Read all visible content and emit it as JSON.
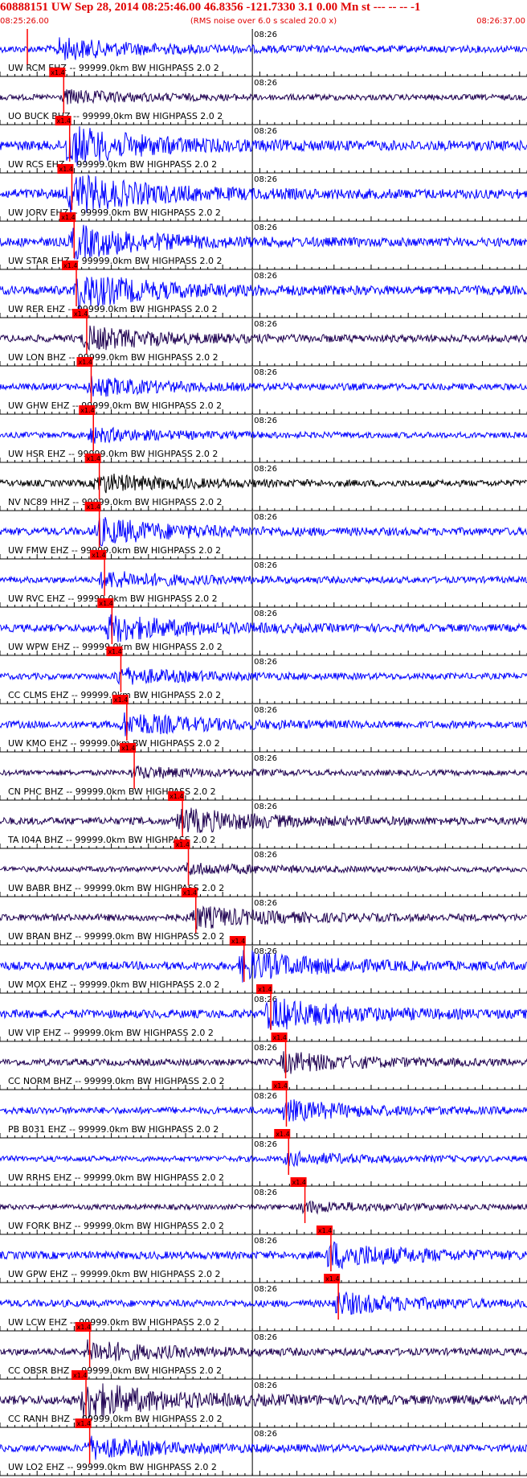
{
  "header": {
    "title": "60888151 UW Sep 28, 2014 08:25:46.00   46.8356 -121.7330  3.1 0.00 Mn st --- -- --  -1",
    "subtitle": "(RMS noise over 6.0 s scaled 20.0 x)",
    "start_time": "08:25:26.00",
    "end_time": "08:26:37.00"
  },
  "colors": {
    "header": "#e00000",
    "trace_blue": "#0000ff",
    "trace_dark": "#1e0050",
    "pick": "#ff0000",
    "grid": "#000000"
  },
  "chart_data": {
    "type": "line",
    "title": "60888151 UW Sep 28, 2014 08:25:46.00   46.8356 -121.7330  3.1 0.00 Mn st --- -- --  -1",
    "subtitle": "(RMS noise over 6.0 s scaled 20.0 x)",
    "x_range_s": [
      0,
      71
    ],
    "x_start": "08:25:26.00",
    "x_end": "08:26:37.00",
    "minute_mark_label": "08:26",
    "minute_mark_s": 34,
    "pick_label": "x1.4",
    "traces": [
      {
        "label": "UW RCM EHZ -- 99999.0km BW  HIGHPASS  2.0  2",
        "color": "blue",
        "pick_s": 2.6,
        "onset_s": 7.4,
        "amp": 0.42
      },
      {
        "label": "UO BUCK BHZ -- 99999.0km BW  HIGHPASS  2.0  2",
        "color": "dark",
        "pick_s": 7.5,
        "onset_s": 8.2,
        "amp": 0.18
      },
      {
        "label": "UW RCS EHZ -- 99999.0km BW  HIGHPASS  2.0  2",
        "color": "blue",
        "pick_s": 8.3,
        "onset_s": 8.5,
        "amp": 1.0
      },
      {
        "label": "UW JORV EHZ -- 99999.0km BW  HIGHPASS  2.0  2",
        "color": "blue",
        "pick_s": 8.6,
        "onset_s": 8.8,
        "amp": 1.0
      },
      {
        "label": "UW STAR EHZ -- 99999.0km BW  HIGHPASS  2.0  2",
        "color": "blue",
        "pick_s": 8.9,
        "onset_s": 9.2,
        "amp": 0.8
      },
      {
        "label": "UW RER EHZ -- 99999.0km BW  HIGHPASS  2.0  2",
        "color": "blue",
        "pick_s": 9.2,
        "onset_s": 9.8,
        "amp": 0.85
      },
      {
        "label": "UW LON BHZ -- 99999.0km BW  HIGHPASS  2.0  2",
        "color": "dark",
        "pick_s": 10.6,
        "onset_s": 10.9,
        "amp": 0.5
      },
      {
        "label": "UW GHW EHZ -- 99999.0km BW  HIGHPASS  2.0  2",
        "color": "blue",
        "pick_s": 11.2,
        "onset_s": 11.5,
        "amp": 0.35
      },
      {
        "label": "UW HSR EHZ -- 99999.0km BW  HIGHPASS  2.0  2",
        "color": "blue",
        "pick_s": 11.5,
        "onset_s": 11.6,
        "amp": 0.2
      },
      {
        "label": "NV NC89 HHZ -- 99999.0km BW  HIGHPASS  2.0  2",
        "color": "black",
        "pick_s": 12.3,
        "onset_s": 12.4,
        "amp": 0.35
      },
      {
        "label": "UW FMW EHZ -- 99999.0km BW  HIGHPASS  2.0  2",
        "color": "blue",
        "pick_s": 12.3,
        "onset_s": 12.5,
        "amp": 0.6
      },
      {
        "label": "UW RVC EHZ -- 99999.0km BW  HIGHPASS  2.0  2",
        "color": "blue",
        "pick_s": 13.0,
        "onset_s": 13.2,
        "amp": 0.3
      },
      {
        "label": "UW WPW EHZ -- 99999.0km BW  HIGHPASS  2.0  2",
        "color": "blue",
        "pick_s": 14.0,
        "onset_s": 14.1,
        "amp": 0.6
      },
      {
        "label": "CC CLMS EHZ -- 99999.0km BW  HIGHPASS  2.0  2",
        "color": "blue",
        "pick_s": 15.2,
        "onset_s": 15.3,
        "amp": 0.28
      },
      {
        "label": "UW KMO EHZ -- 99999.0km BW  HIGHPASS  2.0  2",
        "color": "blue",
        "pick_s": 16.0,
        "onset_s": 16.1,
        "amp": 0.5
      },
      {
        "label": "CN PHC BHZ -- 99999.0km BW  HIGHPASS  2.0  2",
        "color": "dark",
        "pick_s": 17.0,
        "onset_s": 17.3,
        "amp": 0.12
      },
      {
        "label": "TA I04A BHZ -- 99999.0km BW  HIGHPASS  2.0  2",
        "color": "dark",
        "pick_s": 23.5,
        "onset_s": 23.7,
        "amp": 0.55
      },
      {
        "label": "UW BABR BHZ -- 99999.0km BW  HIGHPASS  2.0  2",
        "color": "dark",
        "pick_s": 24.3,
        "onset_s": 24.5,
        "amp": 0.12
      },
      {
        "label": "UW BRAN BHZ -- 99999.0km BW  HIGHPASS  2.0  2",
        "color": "dark",
        "pick_s": 25.3,
        "onset_s": 25.5,
        "amp": 0.45
      },
      {
        "label": "UW MOX EHZ -- 99999.0km BW  HIGHPASS  2.0  2",
        "color": "blue",
        "pick_s": 31.8,
        "onset_s": 32.0,
        "amp": 0.7
      },
      {
        "label": "UW VIP EHZ -- 99999.0km BW  HIGHPASS  2.0  2",
        "color": "blue",
        "pick_s": 35.4,
        "onset_s": 35.6,
        "amp": 0.75
      },
      {
        "label": "CC NORM BHZ -- 99999.0km BW  HIGHPASS  2.0  2",
        "color": "dark",
        "pick_s": 37.4,
        "onset_s": 37.6,
        "amp": 0.4
      },
      {
        "label": "PB B031 EHZ -- 99999.0km BW  HIGHPASS  2.0  2",
        "color": "blue",
        "pick_s": 37.5,
        "onset_s": 37.7,
        "amp": 0.4
      },
      {
        "label": "UW RRHS EHZ -- 99999.0km BW  HIGHPASS  2.0  2",
        "color": "blue",
        "pick_s": 37.8,
        "onset_s": 38.0,
        "amp": 0.15
      },
      {
        "label": "UW FORK BHZ -- 99999.0km BW  HIGHPASS  2.0  2",
        "color": "dark",
        "pick_s": 40.0,
        "onset_s": 40.2,
        "amp": 0.1
      },
      {
        "label": "UW GPW EHZ -- 99999.0km BW  HIGHPASS  2.0  2",
        "color": "blue",
        "pick_s": 43.5,
        "onset_s": 43.7,
        "amp": 0.6
      },
      {
        "label": "UW LCW EHZ -- 99999.0km BW  HIGHPASS  2.0  2",
        "color": "blue",
        "pick_s": 44.5,
        "onset_s": 44.7,
        "amp": 0.45
      },
      {
        "label": "CC OBSR BHZ -- 99999.0km BW  HIGHPASS  2.0  2",
        "color": "dark",
        "pick_s": 11.0,
        "onset_s": 11.2,
        "amp": 0.45
      },
      {
        "label": "CC RANH BHZ -- 99999.0km BW  HIGHPASS  2.0  2",
        "color": "dark",
        "pick_s": 10.5,
        "onset_s": 10.7,
        "amp": 0.9
      },
      {
        "label": "UW LO2 EHZ -- 99999.0km BW  HIGHPASS  2.0  2",
        "color": "blue",
        "pick_s": 11.0,
        "onset_s": 11.2,
        "amp": 0.45
      }
    ]
  }
}
